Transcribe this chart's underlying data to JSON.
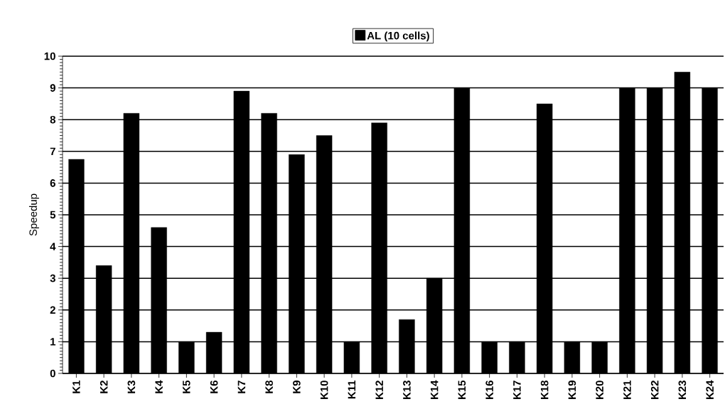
{
  "chart_data": {
    "type": "bar",
    "ylabel": "Speedup",
    "categories": [
      "K1",
      "K2",
      "K3",
      "K4",
      "K5",
      "K6",
      "K7",
      "K8",
      "K9",
      "K10",
      "K11",
      "K12",
      "K13",
      "K14",
      "K15",
      "K16",
      "K17",
      "K18",
      "K19",
      "K20",
      "K21",
      "K22",
      "K23",
      "K24"
    ],
    "series": [
      {
        "name": "AL (10 cells)",
        "color": "#000000",
        "values": [
          6.75,
          3.4,
          8.2,
          4.6,
          1.0,
          1.3,
          8.9,
          8.2,
          6.9,
          7.5,
          1.0,
          7.9,
          1.7,
          3.0,
          9.0,
          1.0,
          1.0,
          8.5,
          1.0,
          1.0,
          9.0,
          9.0,
          9.5,
          9.0
        ]
      }
    ],
    "ylim": [
      0,
      10
    ],
    "yticks": [
      0,
      1,
      2,
      3,
      4,
      5,
      6,
      7,
      8,
      9,
      10
    ],
    "grid": "y",
    "legend": "top"
  }
}
